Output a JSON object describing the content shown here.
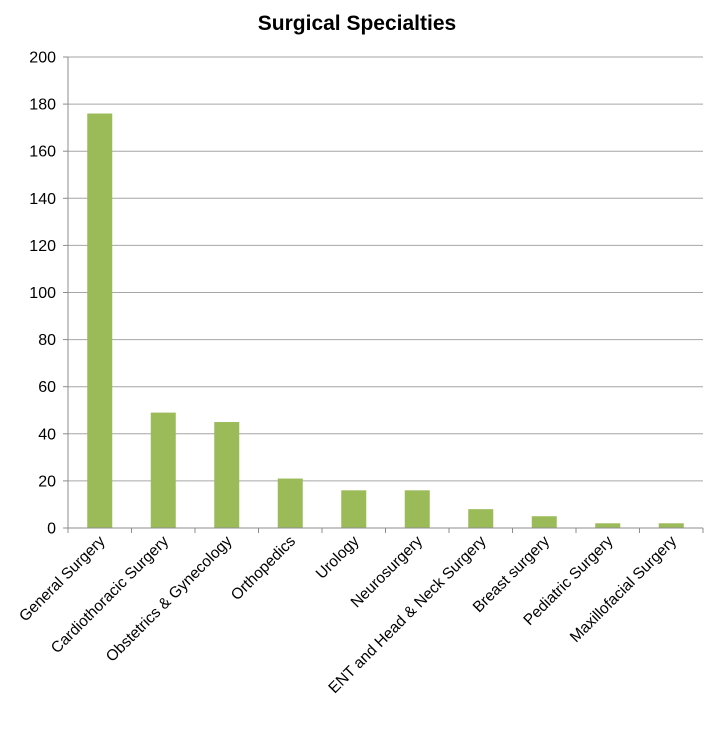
{
  "chart_data": {
    "type": "bar",
    "title": "Surgical Specialties",
    "xlabel": "",
    "ylabel": "",
    "categories": [
      "General Surgery",
      "Cardiothoracic Surgery",
      "Obstetrics & Gynecology",
      "Orthopedics",
      "Urology",
      "Neurosurgery",
      "ENT and Head & Neck Surgery",
      "Breast surgery",
      "Pediatric Surgery",
      "Maxillofacial Surgery"
    ],
    "values": [
      176,
      49,
      45,
      21,
      16,
      16,
      8,
      5,
      2,
      2
    ],
    "ylim": [
      0,
      200
    ],
    "yticks": [
      0,
      20,
      40,
      60,
      80,
      100,
      120,
      140,
      160,
      180,
      200
    ],
    "grid": true,
    "legend": "none",
    "bar_color": "#9bbb59"
  }
}
